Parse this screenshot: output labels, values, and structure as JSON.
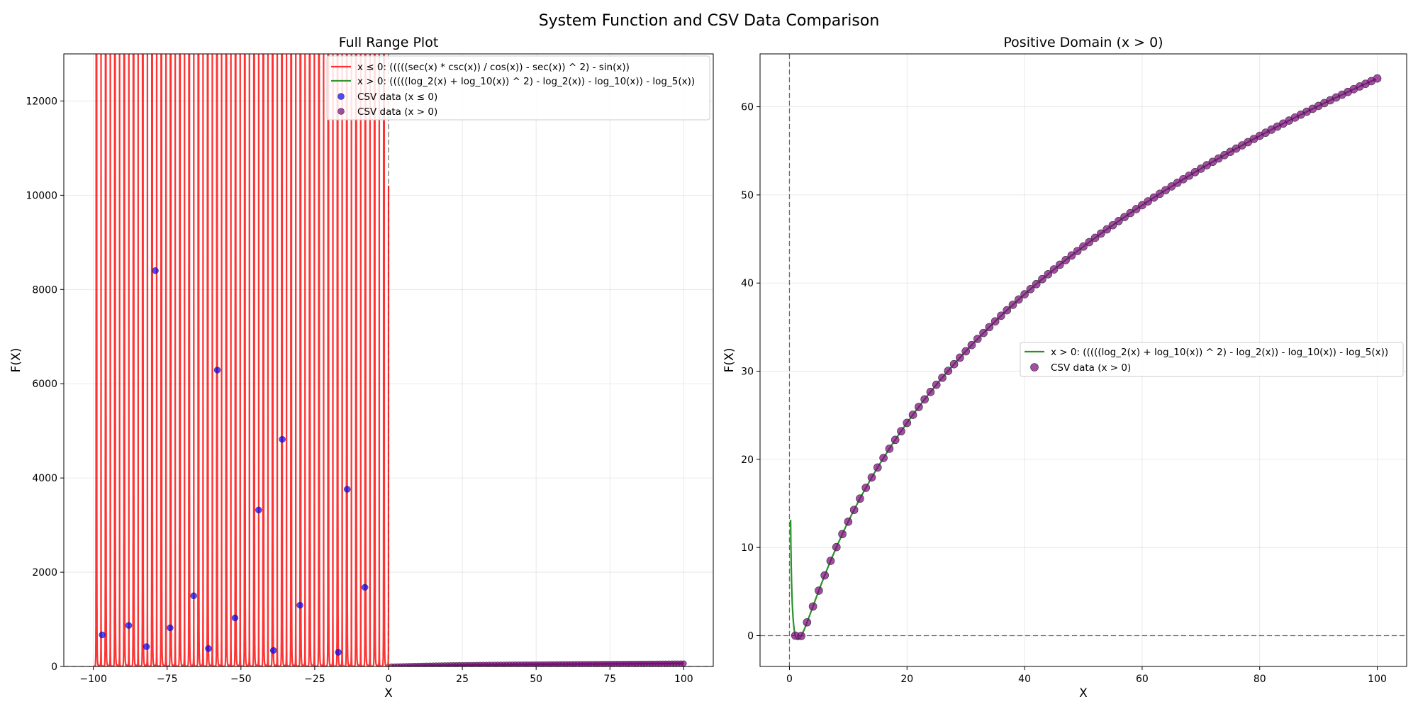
{
  "figure": {
    "title": "System Function and CSV Data Comparison"
  },
  "colors": {
    "neg_line": "#ff0000",
    "pos_line": "#008000",
    "neg_points": "#0000ff",
    "pos_points": "#800080",
    "point_edge": "#333333"
  },
  "chart_data": [
    {
      "type": "line",
      "title": "Full Range Plot",
      "xlabel": "X",
      "ylabel": "F(X)",
      "xlim": [
        -110,
        110
      ],
      "ylim": [
        0,
        13000
      ],
      "xticks": [
        -100,
        -75,
        -50,
        -25,
        0,
        25,
        50,
        75,
        100
      ],
      "yticks": [
        0,
        2000,
        4000,
        6000,
        8000,
        10000,
        12000
      ],
      "grid": true,
      "legend_position": "top-right",
      "reference_lines": {
        "x": 0,
        "y": 0
      },
      "series": [
        {
          "name": "x ≤ 0: (((((sec(x) * csc(x)) / cos(x)) - sec(x)) ^ 2) - sin(x))",
          "kind": "line",
          "domain": [
            -100,
            0
          ]
        },
        {
          "name": "x > 0: (((((log_2(x) + log_10(x)) ^ 2) - log_2(x)) - log_10(x)) - log_5(x))",
          "kind": "line",
          "domain": [
            0,
            100
          ]
        },
        {
          "name": "CSV data (x ≤ 0)",
          "kind": "scatter",
          "points": [
            [
              -97,
              670
            ],
            [
              -88,
              870
            ],
            [
              -82,
              420
            ],
            [
              -79,
              8400
            ],
            [
              -74,
              820
            ],
            [
              -66,
              1500
            ],
            [
              -61,
              380
            ],
            [
              -58,
              6290
            ],
            [
              -52,
              1030
            ],
            [
              -44,
              3320
            ],
            [
              -39,
              340
            ],
            [
              -36,
              4820
            ],
            [
              -30,
              1300
            ],
            [
              -17,
              300
            ],
            [
              -14,
              3760
            ],
            [
              -8,
              1680
            ]
          ]
        },
        {
          "name": "CSV data (x > 0)",
          "kind": "scatter",
          "domain": [
            1,
            100
          ]
        }
      ]
    },
    {
      "type": "line",
      "title": "Positive Domain (x > 0)",
      "xlabel": "X",
      "ylabel": "F(X)",
      "xlim": [
        -5,
        105
      ],
      "ylim": [
        -3.5,
        66
      ],
      "xticks": [
        0,
        20,
        40,
        60,
        80,
        100
      ],
      "yticks": [
        0,
        10,
        20,
        30,
        40,
        50,
        60
      ],
      "grid": true,
      "legend_position": "center-right",
      "reference_lines": {
        "x": 0,
        "y": 0
      },
      "series": [
        {
          "name": "x > 0: (((((log_2(x) + log_10(x)) ^ 2) - log_2(x)) - log_10(x)) - log_5(x))",
          "kind": "line",
          "domain": [
            0.2,
            100
          ]
        },
        {
          "name": "CSV data (x > 0)",
          "kind": "scatter",
          "domain": [
            1,
            100
          ]
        }
      ]
    }
  ]
}
